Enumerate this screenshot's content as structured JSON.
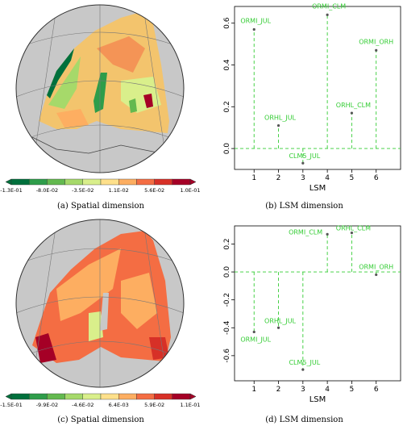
{
  "colors": {
    "lsm_green": "#33cc33",
    "sea_gray": "#c8c8c8",
    "colorbar_top": [
      "#00703c",
      "#2e9d4a",
      "#63b94f",
      "#a6d96a",
      "#d9ef8b",
      "#fee08b",
      "#fdae61",
      "#f46d43",
      "#d73027",
      "#a50026"
    ],
    "colorbar_bottom": [
      "#00703c",
      "#2e9d4a",
      "#63b94f",
      "#a6d96a",
      "#d9ef8b",
      "#fee08b",
      "#fdae61",
      "#f46d43",
      "#d73027",
      "#a50026"
    ]
  },
  "panels": {
    "a": {
      "caption": "(a) Spatial dimension",
      "colorbar_ticks": [
        "-1.3E-01",
        "-8.0E-02",
        "-3.5E-02",
        "1.1E-02",
        "5.6E-02",
        "1.0E-01"
      ]
    },
    "b": {
      "caption": "(b) LSM dimension"
    },
    "c": {
      "caption": "(c) Spatial dimension",
      "colorbar_ticks": [
        "-1.5E-01",
        "-9.9E-02",
        "-4.6E-02",
        "6.4E-03",
        "5.9E-02",
        "1.1E-01"
      ]
    },
    "d": {
      "caption": "(d) LSM dimension"
    }
  },
  "chart_data": [
    {
      "type": "scatter",
      "panel": "b",
      "xlabel": "LSM",
      "ylabel": "",
      "xlim": [
        0.2,
        7.0
      ],
      "ylim": [
        -0.1,
        0.68
      ],
      "x_ticks": [
        1,
        2,
        3,
        4,
        5,
        6
      ],
      "y_ticks": [
        0.0,
        0.2,
        0.4,
        0.6
      ],
      "y_tick_labels": [
        "0.0",
        "0.2",
        "0.4",
        "0.6"
      ],
      "reference_line": 0.0,
      "points": [
        {
          "x": 1,
          "y": 0.57,
          "label": "ORMI_JUL"
        },
        {
          "x": 2,
          "y": 0.11,
          "label": "ORHL_JUL"
        },
        {
          "x": 3,
          "y": -0.07,
          "label": "CLM5_JUL"
        },
        {
          "x": 4,
          "y": 0.64,
          "label": "ORMI_CLM"
        },
        {
          "x": 5,
          "y": 0.17,
          "label": "ORHL_CLM"
        },
        {
          "x": 6,
          "y": 0.47,
          "label": "ORMI_ORH"
        }
      ]
    },
    {
      "type": "scatter",
      "panel": "d",
      "xlabel": "LSM",
      "ylabel": "",
      "xlim": [
        0.2,
        7.0
      ],
      "ylim": [
        -0.78,
        0.33
      ],
      "x_ticks": [
        1,
        2,
        3,
        4,
        5,
        6
      ],
      "y_ticks": [
        -0.6,
        -0.4,
        -0.2,
        0.0,
        0.2
      ],
      "y_tick_labels": [
        "-0.6",
        "-0.4",
        "-0.2",
        "0.0",
        "0.2"
      ],
      "reference_line": 0.0,
      "points": [
        {
          "x": 1,
          "y": -0.43,
          "label": "ORMI_JUL"
        },
        {
          "x": 2,
          "y": -0.4,
          "label": "ORHL_JUL"
        },
        {
          "x": 3,
          "y": -0.7,
          "label": "CLM5_JUL"
        },
        {
          "x": 4,
          "y": 0.27,
          "label": "ORMI_CLM"
        },
        {
          "x": 5,
          "y": 0.28,
          "label": "ORHL_CLM"
        },
        {
          "x": 6,
          "y": -0.02,
          "label": "ORMI_ORH"
        }
      ]
    }
  ]
}
